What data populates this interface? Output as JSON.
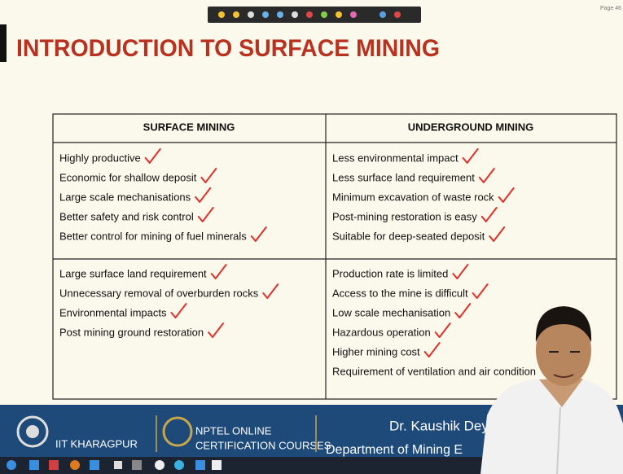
{
  "page_label": "Page 46",
  "title": "INTRODUCTION TO SURFACE MINING",
  "table": {
    "headers": [
      "SURFACE MINING",
      "UNDERGROUND MINING"
    ],
    "rows": [
      [
        [
          "Highly productive",
          "Economic for shallow deposit",
          "Large scale mechanisations",
          "Better safety and risk control",
          "Better control for mining of fuel minerals"
        ],
        [
          "Less environmental impact",
          "Less surface land requirement",
          "Minimum excavation of waste rock",
          "Post-mining restoration is easy",
          "Suitable for deep-seated deposit"
        ]
      ],
      [
        [
          "Large surface land requirement",
          "Unnecessary removal of overburden rocks",
          "Environmental impacts",
          "Post mining ground restoration"
        ],
        [
          "Production rate is limited",
          "Access to the mine is difficult",
          "Low scale mechanisation",
          "Hazardous operation",
          "Higher mining cost",
          "Requirement of ventilation and air condition"
        ]
      ]
    ]
  },
  "footer": {
    "institute": "IIT KHARAGPUR",
    "program": [
      "NPTEL ONLINE",
      "CERTIFICATION COURSES"
    ],
    "speaker": "Dr. Kaushik Dey",
    "department": "Department of Mining E"
  }
}
